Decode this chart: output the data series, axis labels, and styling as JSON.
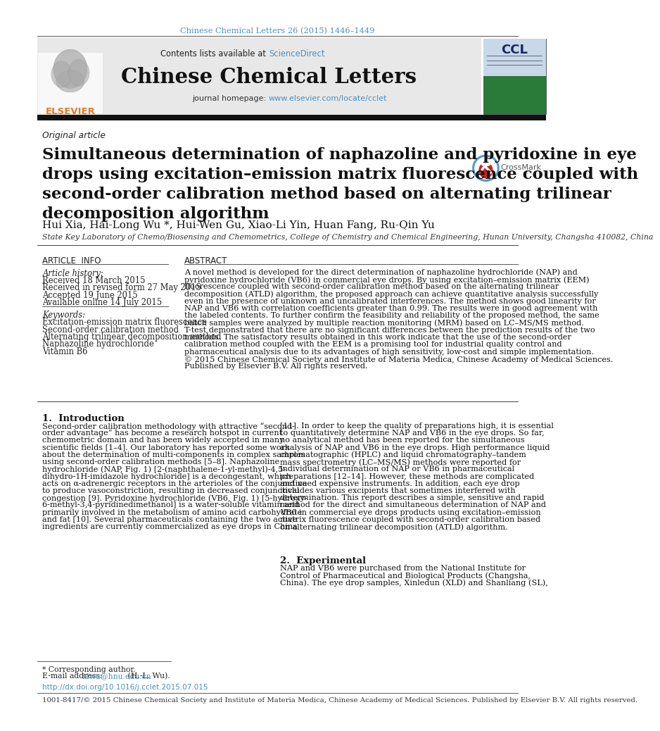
{
  "journal_ref": "Chinese Chemical Letters 26 (2015) 1446–1449",
  "journal_name": "Chinese Chemical Letters",
  "contents_line_plain": "Contents lists available at ",
  "contents_line_blue": "ScienceDirect",
  "article_type": "Original article",
  "title": "Simultaneous determination of naphazoline and pyridoxine in eye\ndrops using excitation–emission matrix fluorescence coupled with\nsecond-order calibration method based on alternating trilinear\ndecomposition algorithm",
  "authors": "Hui Xia, Hai-Long Wu *, Hui-Wen Gu, Xiao-Li Yin, Huan Fang, Ru-Qin Yu",
  "affiliation": "State Key Laboratory of Chemo/Biosensing and Chemometrics, College of Chemistry and Chemical Engineering, Hunan University, Changsha 410082, China",
  "article_info_header": "ARTICLE  INFO",
  "article_history_label": "Article history:",
  "received": "Received 18 March 2015",
  "received_revised": "Received in revised form 27 May 2015",
  "accepted": "Accepted 19 June 2015",
  "available": "Available online 14 July 2015",
  "keywords_label": "Keywords:",
  "keywords": [
    "Excitation-emission matrix fluorescence",
    "Second-order calibration method",
    "Alternating trilinear decomposition method",
    "Naphazoline hydrochloride",
    "Vitamin B6"
  ],
  "abstract_header": "ABSTRACT",
  "abstract_lines": [
    "A novel method is developed for the direct determination of naphazoline hydrochloride (NAP) and",
    "pyridoxine hydrochloride (VB6) in commercial eye drops. By using excitation–emission matrix (EEM)",
    "fluorescence coupled with second-order calibration method based on the alternating trilinear",
    "decomposition (ATLD) algorithm, the proposed approach can achieve quantitative analysis successfully",
    "even in the presence of unknown and uncalibrated interferences. The method shows good linearity for",
    "NAP and VB6 with correlation coefficients greater than 0.99. The results were in good agreement with",
    "the labeled contents. To further confirm the feasibility and reliability of the proposed method, the same",
    "batch samples were analyzed by multiple reaction monitoring (MRM) based on LC–MS/MS method.",
    "T-test demonstrated that there are no significant differences between the prediction results of the two",
    "methods. The satisfactory results obtained in this work indicate that the use of the second-order",
    "calibration method coupled with the EEM is a promising tool for industrial quality control and",
    "pharmaceutical analysis due to its advantages of high sensitivity, low-cost and simple implementation.",
    "© 2015 Chinese Chemical Society and Institute of Materia Medica, Chinese Academy of Medical Sciences.",
    "Published by Elsevier B.V. All rights reserved."
  ],
  "intro_header": "1.  Introduction",
  "intro_col1_lines": [
    "Second-order calibration methodology with attractive “second-",
    "order advantage” has become a research hotspot in current",
    "chemometric domain and has been widely accepted in many",
    "scientific fields [1–4]. Our laboratory has reported some work",
    "about the determination of multi-components in complex samples",
    "using second-order calibration methods [5–8]. Naphazoline",
    "hydrochloride (NAP, Fig. 1) [2-(naphthalene-1-yl-methyl)-4,5-",
    "dihydro-1H-imidazole hydrochloride] is a decongestant, which",
    "acts on α-adrenergic receptors in the arterioles of the conjunctiva",
    "to produce vasoconstriction, resulting in decreased conjunctival",
    "congestion [9]. Pyridoxine hydrochloride (VB6, Fig. 1) [5-hydroxy-",
    "6-methyl-3,4-pyridinedimethanol] is a water-soluble vitamin and",
    "primarily involved in the metabolism of amino acid carbohydrate",
    "and fat [10]. Several pharmaceuticals containing the two active",
    "ingredients are currently commercialized as eye drops in China"
  ],
  "intro_col2_lines": [
    "[11]. In order to keep the quality of preparations high, it is essential",
    "to quantitatively determine NAP and VB6 in the eye drops. So far,",
    "no analytical method has been reported for the simultaneous",
    "analysis of NAP and VB6 in the eye drops. High performance liquid",
    "chromatographic (HPLC) and liquid chromatography–tandem",
    "mass spectrometry (LC–MS/MS) methods were reported for",
    "individual determination of NAP or VB6 in pharmaceutical",
    "preparations [12–14]. However, these methods are complicated",
    "and need expensive instruments. In addition, each eye drop",
    "includes various excipients that sometimes interfered with",
    "determination. This report describes a simple, sensitive and rapid",
    "method for the direct and simultaneous determination of NAP and",
    "VB6 in commercial eye drops products using excitation–emission",
    "matrix fluorescence coupled with second-order calibration based",
    "on alternating trilinear decomposition (ATLD) algorithm."
  ],
  "exp_header": "2.  Experimental",
  "exp_lines": [
    "NAP and VB6 were purchased from the National Institute for",
    "Control of Pharmaceutical and Biological Products (Changsha,",
    "China). The eye drop samples, Xinledun (XLD) and Shanliang (SL),"
  ],
  "footnote_star": "* Corresponding author.",
  "footnote_email_prefix": "E-mail address: ",
  "footnote_email_link": "hlwu@hnu.edu.cn",
  "footnote_email_suffix": " (H.-L. Wu).",
  "doi": "http://dx.doi.org/10.1016/j.cclet.2015.07.015",
  "copyright": "1001-8417/© 2015 Chinese Chemical Society and Institute of Materia Medica, Chinese Academy of Medical Sciences. Published by Elsevier B.V. All rights reserved.",
  "bg_color": "#ffffff",
  "light_gray": "#e8e8e8",
  "blue_color": "#4a90c4",
  "elsevier_orange": "#e87722",
  "journal_homepage_plain": "journal homepage: ",
  "journal_homepage_link": "www.elsevier.com/locate/cclet"
}
